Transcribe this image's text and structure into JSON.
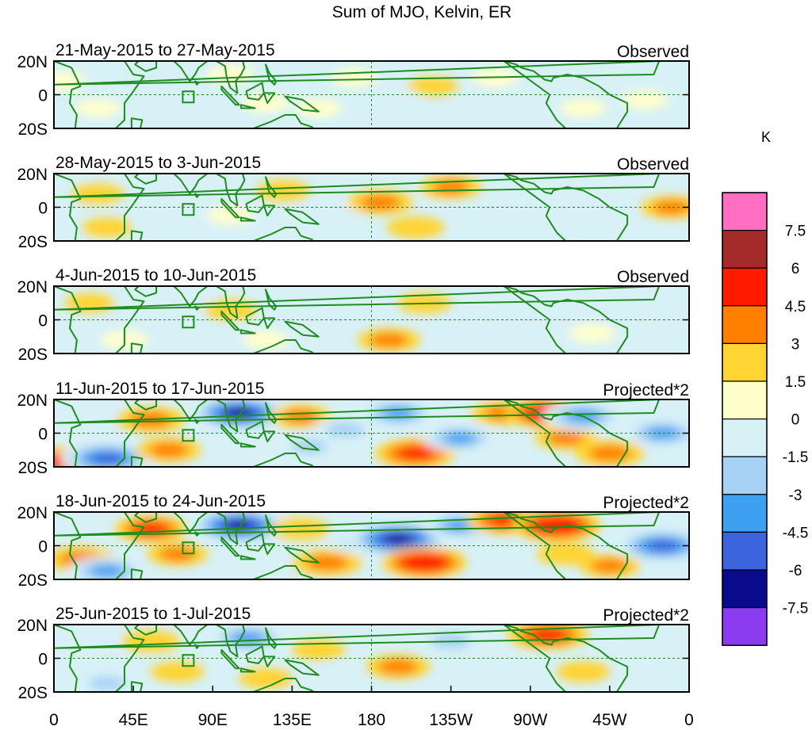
{
  "chart_data": {
    "type": "heatmap",
    "title": "Sum of MJO, Kelvin, ER",
    "units": "K",
    "x_ticks": [
      "0",
      "45E",
      "90E",
      "135E",
      "180",
      "135W",
      "90W",
      "45W",
      "0"
    ],
    "y_ticks": [
      "20N",
      "0",
      "20S"
    ],
    "colorbar": {
      "levels": [
        "7.5",
        "6",
        "4.5",
        "3",
        "1.5",
        "0",
        "-1.5",
        "-3",
        "-4.5",
        "-6",
        "-7.5"
      ],
      "colors": [
        "#ff6ec0",
        "#a52a2a",
        "#ff1a00",
        "#ff7f00",
        "#ffd433",
        "#ffffcc",
        "#d7f1f7",
        "#a8d2f5",
        "#3ea0f0",
        "#3c64dc",
        "#0a0a8c",
        "#8c3cf0"
      ]
    },
    "panels": [
      {
        "period": "21-May-2015 to 27-May-2015",
        "kind": "Observed",
        "anomalies": [
          {
            "lon": 5,
            "lat": 8,
            "val": 1.2
          },
          {
            "lon": 25,
            "lat": -8,
            "val": 1.0
          },
          {
            "lon": 60,
            "lat": 10,
            "val": -0.8
          },
          {
            "lon": 100,
            "lat": 12,
            "val": 1.2
          },
          {
            "lon": 120,
            "lat": -5,
            "val": 1.2
          },
          {
            "lon": 150,
            "lat": -8,
            "val": 1.0
          },
          {
            "lon": 170,
            "lat": 10,
            "val": 1.0
          },
          {
            "lon": 195,
            "lat": -2,
            "val": -1.2
          },
          {
            "lon": 215,
            "lat": 5,
            "val": 1.5
          },
          {
            "lon": 250,
            "lat": 10,
            "val": 1.0
          },
          {
            "lon": 275,
            "lat": 10,
            "val": -0.8
          },
          {
            "lon": 300,
            "lat": -8,
            "val": 1.0
          },
          {
            "lon": 335,
            "lat": -3,
            "val": 1.0
          }
        ]
      },
      {
        "period": "28-May-2015 to 3-Jun-2015",
        "kind": "Observed",
        "anomalies": [
          {
            "lon": 25,
            "lat": 8,
            "val": 1.8
          },
          {
            "lon": 30,
            "lat": -12,
            "val": 1.5
          },
          {
            "lon": 70,
            "lat": 7,
            "val": -2.8
          },
          {
            "lon": 70,
            "lat": -12,
            "val": -1.8
          },
          {
            "lon": 100,
            "lat": -5,
            "val": 1.0
          },
          {
            "lon": 130,
            "lat": 10,
            "val": 2.0
          },
          {
            "lon": 160,
            "lat": -5,
            "val": -1.5
          },
          {
            "lon": 185,
            "lat": 3,
            "val": 3.5
          },
          {
            "lon": 205,
            "lat": -12,
            "val": 2.5
          },
          {
            "lon": 225,
            "lat": 12,
            "val": 3.0
          },
          {
            "lon": 265,
            "lat": -5,
            "val": -1.2
          },
          {
            "lon": 280,
            "lat": 8,
            "val": -2.5
          },
          {
            "lon": 315,
            "lat": -12,
            "val": -1.5
          },
          {
            "lon": 350,
            "lat": 0,
            "val": 3.0
          }
        ]
      },
      {
        "period": "4-Jun-2015 to 10-Jun-2015",
        "kind": "Observed",
        "anomalies": [
          {
            "lon": 20,
            "lat": 10,
            "val": 1.5
          },
          {
            "lon": 40,
            "lat": -12,
            "val": 1.2
          },
          {
            "lon": 75,
            "lat": 10,
            "val": -2.2
          },
          {
            "lon": 100,
            "lat": 6,
            "val": 1.8
          },
          {
            "lon": 120,
            "lat": -12,
            "val": 1.0
          },
          {
            "lon": 155,
            "lat": 8,
            "val": -1.5
          },
          {
            "lon": 190,
            "lat": -12,
            "val": 3.2
          },
          {
            "lon": 210,
            "lat": 10,
            "val": 2.0
          },
          {
            "lon": 240,
            "lat": -5,
            "val": -1.0
          },
          {
            "lon": 280,
            "lat": 12,
            "val": -1.5
          },
          {
            "lon": 305,
            "lat": -8,
            "val": 1.2
          },
          {
            "lon": 340,
            "lat": 5,
            "val": -1.5
          }
        ]
      },
      {
        "period": "11-Jun-2015 to 17-Jun-2015",
        "kind": "Projected*2",
        "anomalies": [
          {
            "lon": 5,
            "lat": -17,
            "val": 5.5
          },
          {
            "lon": 20,
            "lat": 10,
            "val": -2.5
          },
          {
            "lon": 30,
            "lat": -15,
            "val": -7.0
          },
          {
            "lon": 55,
            "lat": 8,
            "val": 4.0
          },
          {
            "lon": 65,
            "lat": -10,
            "val": 3.5
          },
          {
            "lon": 105,
            "lat": 12,
            "val": -7.5
          },
          {
            "lon": 110,
            "lat": -8,
            "val": -2.5
          },
          {
            "lon": 140,
            "lat": 10,
            "val": 3.0
          },
          {
            "lon": 145,
            "lat": -8,
            "val": -3.0
          },
          {
            "lon": 165,
            "lat": 2,
            "val": -3.5
          },
          {
            "lon": 195,
            "lat": 12,
            "val": -5.0
          },
          {
            "lon": 205,
            "lat": -12,
            "val": 5.5
          },
          {
            "lon": 230,
            "lat": -3,
            "val": -4.5
          },
          {
            "lon": 255,
            "lat": 12,
            "val": 3.5
          },
          {
            "lon": 280,
            "lat": 12,
            "val": 6.0
          },
          {
            "lon": 290,
            "lat": -3,
            "val": 3.0
          },
          {
            "lon": 300,
            "lat": 10,
            "val": -5.5
          },
          {
            "lon": 315,
            "lat": -12,
            "val": 4.0
          },
          {
            "lon": 345,
            "lat": 0,
            "val": -5.0
          }
        ]
      },
      {
        "period": "18-Jun-2015 to 24-Jun-2015",
        "kind": "Projected*2",
        "anomalies": [
          {
            "lon": 15,
            "lat": -8,
            "val": 4.0
          },
          {
            "lon": 30,
            "lat": -15,
            "val": -5.0
          },
          {
            "lon": 55,
            "lat": 10,
            "val": 4.5
          },
          {
            "lon": 70,
            "lat": -5,
            "val": 3.0
          },
          {
            "lon": 105,
            "lat": 12,
            "val": -7.5
          },
          {
            "lon": 115,
            "lat": -8,
            "val": -2.5
          },
          {
            "lon": 140,
            "lat": 10,
            "val": 2.5
          },
          {
            "lon": 155,
            "lat": -10,
            "val": 4.0
          },
          {
            "lon": 175,
            "lat": 2,
            "val": -3.5
          },
          {
            "lon": 195,
            "lat": 4,
            "val": -8.0
          },
          {
            "lon": 210,
            "lat": -10,
            "val": 6.0
          },
          {
            "lon": 230,
            "lat": 12,
            "val": -4.5
          },
          {
            "lon": 255,
            "lat": 15,
            "val": 4.5
          },
          {
            "lon": 285,
            "lat": 12,
            "val": 6.5
          },
          {
            "lon": 290,
            "lat": -5,
            "val": 2.5
          },
          {
            "lon": 315,
            "lat": -12,
            "val": 3.0
          },
          {
            "lon": 345,
            "lat": 0,
            "val": -7.0
          }
        ]
      },
      {
        "period": "25-Jun-2015 to 1-Jul-2015",
        "kind": "Projected*2",
        "anomalies": [
          {
            "lon": 20,
            "lat": 8,
            "val": -1.5
          },
          {
            "lon": 30,
            "lat": -15,
            "val": -3.0
          },
          {
            "lon": 55,
            "lat": 10,
            "val": 2.5
          },
          {
            "lon": 70,
            "lat": -8,
            "val": 2.0
          },
          {
            "lon": 110,
            "lat": 12,
            "val": -5.0
          },
          {
            "lon": 120,
            "lat": -12,
            "val": 2.0
          },
          {
            "lon": 150,
            "lat": 5,
            "val": 2.0
          },
          {
            "lon": 160,
            "lat": -10,
            "val": -2.5
          },
          {
            "lon": 195,
            "lat": -5,
            "val": 3.5
          },
          {
            "lon": 225,
            "lat": 10,
            "val": -3.5
          },
          {
            "lon": 235,
            "lat": -12,
            "val": -1.5
          },
          {
            "lon": 280,
            "lat": 14,
            "val": 5.5
          },
          {
            "lon": 300,
            "lat": -8,
            "val": 2.0
          },
          {
            "lon": 340,
            "lat": 5,
            "val": -2.5
          }
        ]
      }
    ]
  }
}
